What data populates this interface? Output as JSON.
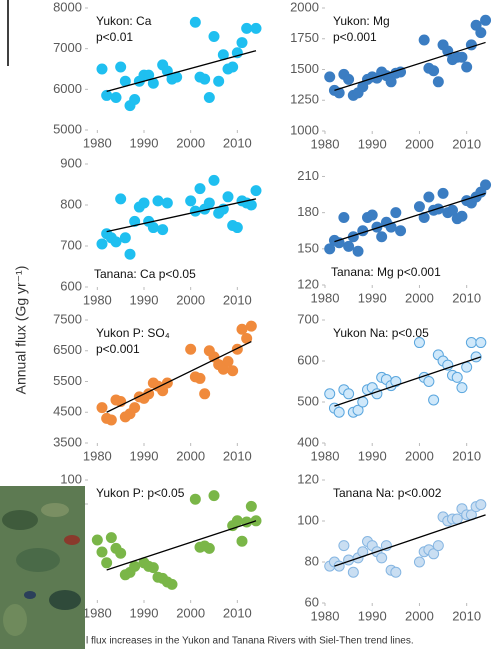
{
  "axis_label": "Annual flux (Gg yr⁻¹)",
  "caption": "l flux increases in the Yukon and Tanana Rivers with Siel-Then trend lines.",
  "chart_data": [
    {
      "type": "scatter",
      "title": "Yukon: Ca",
      "subtitle": "p<0.01",
      "label_position": "top",
      "color": "#1fbff0",
      "edge_color": "#1fbff0",
      "xlim": [
        1978,
        2017
      ],
      "xticks": [
        1980,
        1990,
        2000,
        2010
      ],
      "ylim": [
        5000,
        8000
      ],
      "yticks": [
        5000,
        6000,
        7000,
        8000
      ],
      "x": [
        1981,
        1982,
        1984,
        1985,
        1986,
        1987,
        1988,
        1989,
        1990,
        1991,
        1992,
        1994,
        1995,
        1996,
        1997,
        2001,
        2002,
        2003,
        2004,
        2005,
        2006,
        2007,
        2008,
        2009,
        2010,
        2011,
        2012,
        2014
      ],
      "y": [
        6500,
        5850,
        5800,
        6550,
        6200,
        5600,
        5750,
        6200,
        6350,
        6350,
        6150,
        6600,
        6450,
        6250,
        6300,
        7650,
        6300,
        6250,
        5800,
        7300,
        6200,
        6850,
        6500,
        6550,
        6900,
        7150,
        7500,
        7500
      ],
      "trend": {
        "x": [
          1982,
          2014
        ],
        "y": [
          5950,
          6950
        ]
      }
    },
    {
      "type": "scatter",
      "title": "Yukon: Mg",
      "subtitle": "p<0.001",
      "label_position": "top",
      "color": "#3b7dc2",
      "edge_color": "#3b7dc2",
      "xlim": [
        1980,
        2016
      ],
      "xticks": [
        1980,
        1990,
        2000,
        2010
      ],
      "ylim": [
        1000,
        2000
      ],
      "yticks": [
        1000,
        1250,
        1500,
        1750,
        2000
      ],
      "x": [
        1981,
        1982,
        1983,
        1984,
        1985,
        1986,
        1987,
        1988,
        1989,
        1990,
        1991,
        1992,
        1993,
        1994,
        1995,
        1996,
        2001,
        2002,
        2003,
        2004,
        2005,
        2006,
        2007,
        2008,
        2009,
        2010,
        2011,
        2012,
        2013,
        2014
      ],
      "y": [
        1440,
        1330,
        1310,
        1460,
        1420,
        1290,
        1310,
        1360,
        1420,
        1440,
        1430,
        1480,
        1450,
        1400,
        1470,
        1480,
        1740,
        1510,
        1490,
        1400,
        1700,
        1650,
        1580,
        1600,
        1600,
        1520,
        1700,
        1860,
        1800,
        1900
      ],
      "trend": {
        "x": [
          1982,
          2014
        ],
        "y": [
          1330,
          1720
        ]
      }
    },
    {
      "type": "scatter",
      "title": "Tanana: Ca p<0.05",
      "label_position": "bottom",
      "color": "#1fbff0",
      "edge_color": "#1fbff0",
      "xlim": [
        1978,
        2017
      ],
      "xticks": [
        1980,
        1990,
        2000,
        2010
      ],
      "ylim": [
        600,
        900
      ],
      "yticks": [
        600,
        700,
        800,
        900
      ],
      "x": [
        1981,
        1982,
        1983,
        1984,
        1985,
        1986,
        1987,
        1988,
        1989,
        1990,
        1991,
        1992,
        1993,
        1994,
        1995,
        2000,
        2001,
        2002,
        2003,
        2004,
        2005,
        2006,
        2007,
        2008,
        2009,
        2010,
        2011,
        2012,
        2013,
        2014
      ],
      "y": [
        705,
        730,
        720,
        710,
        815,
        720,
        680,
        760,
        795,
        805,
        760,
        745,
        810,
        740,
        805,
        810,
        785,
        840,
        790,
        805,
        860,
        780,
        790,
        820,
        750,
        745,
        810,
        805,
        800,
        835
      ],
      "trend": {
        "x": [
          1982,
          2014
        ],
        "y": [
          735,
          815
        ]
      }
    },
    {
      "type": "scatter",
      "title": "Tanana: Mg p<0.001",
      "label_position": "bottom",
      "color": "#3b7dc2",
      "edge_color": "#3b7dc2",
      "xlim": [
        1980,
        2016
      ],
      "xticks": [
        1980,
        1990,
        2000,
        2010
      ],
      "ylim": [
        120,
        222
      ],
      "yticks": [
        120,
        150,
        180,
        210
      ],
      "x": [
        1981,
        1982,
        1983,
        1984,
        1985,
        1986,
        1987,
        1988,
        1989,
        1990,
        1991,
        1992,
        1993,
        1994,
        1995,
        1996,
        2000,
        2001,
        2002,
        2003,
        2004,
        2005,
        2006,
        2007,
        2008,
        2009,
        2010,
        2011,
        2012,
        2013,
        2014
      ],
      "y": [
        150,
        157,
        155,
        176,
        152,
        160,
        148,
        165,
        176,
        178,
        168,
        160,
        172,
        168,
        180,
        165,
        185,
        176,
        193,
        182,
        183,
        196,
        180,
        182,
        175,
        177,
        190,
        188,
        193,
        197,
        203
      ],
      "trend": {
        "x": [
          1982,
          2014
        ],
        "y": [
          156,
          196
        ]
      }
    },
    {
      "type": "scatter",
      "title": "Yukon P: SO₄",
      "subtitle": "p<0.001",
      "label_position": "top",
      "color": "#f08a3c",
      "edge_color": "#f08a3c",
      "xlim": [
        1978,
        2017
      ],
      "xticks": [
        1980,
        1990,
        2000,
        2010
      ],
      "ylim": [
        3500,
        7500
      ],
      "yticks": [
        3500,
        4500,
        5500,
        6500,
        7500
      ],
      "x": [
        1981,
        1982,
        1983,
        1984,
        1985,
        1986,
        1987,
        1988,
        1989,
        1990,
        1991,
        1992,
        1993,
        1994,
        1995,
        2000,
        2001,
        2002,
        2003,
        2004,
        2005,
        2006,
        2007,
        2008,
        2009,
        2010,
        2011,
        2012,
        2013
      ],
      "y": [
        4650,
        4300,
        4250,
        4900,
        4850,
        4350,
        4450,
        4650,
        5000,
        4950,
        5100,
        5450,
        5350,
        5200,
        5450,
        6550,
        5650,
        5600,
        5100,
        6500,
        6300,
        6050,
        5900,
        6150,
        5850,
        6550,
        7200,
        6900,
        7300
      ],
      "trend": {
        "x": [
          1982,
          2013
        ],
        "y": [
          4500,
          6800
        ]
      }
    },
    {
      "type": "scatter",
      "title": "Yukon Na: p<0.05",
      "label_position": "top",
      "color": "#cfe8fa",
      "edge_color": "#5aa6de",
      "xlim": [
        1980,
        2016
      ],
      "xticks": [
        1980,
        1990,
        2000,
        2010
      ],
      "ylim": [
        400,
        700
      ],
      "yticks": [
        400,
        500,
        600,
        700
      ],
      "x": [
        1981,
        1982,
        1983,
        1984,
        1985,
        1986,
        1987,
        1988,
        1989,
        1990,
        1991,
        1992,
        1993,
        1994,
        1995,
        2000,
        2001,
        2002,
        2003,
        2004,
        2005,
        2006,
        2007,
        2008,
        2009,
        2010,
        2011,
        2012,
        2013
      ],
      "y": [
        520,
        485,
        475,
        530,
        520,
        475,
        480,
        500,
        530,
        535,
        520,
        560,
        555,
        540,
        550,
        645,
        560,
        550,
        505,
        615,
        600,
        590,
        565,
        560,
        535,
        585,
        645,
        610,
        645
      ],
      "trend": {
        "x": [
          1982,
          2013
        ],
        "y": [
          490,
          610
        ]
      }
    },
    {
      "type": "scatter",
      "title": "Yukon P: p<0.05",
      "label_position": "top",
      "color": "#7ab648",
      "edge_color": "#7ab648",
      "xlim": [
        1978,
        2017
      ],
      "xticks": [
        1980,
        1990,
        2000,
        2010
      ],
      "ylim": [
        0,
        100
      ],
      "yticks": [
        80,
        100
      ],
      "x": [
        1980,
        1981,
        1982,
        1983,
        1984,
        1985,
        1986,
        1987,
        1988,
        1990,
        1991,
        1992,
        1993,
        1994,
        1995,
        1996,
        2001,
        2002,
        2003,
        2004,
        2005,
        2009,
        2010,
        2011,
        2012,
        2013,
        2014
      ],
      "y": [
        50,
        40,
        31,
        52,
        43,
        39,
        21,
        23,
        28,
        31,
        28,
        27,
        19,
        18,
        15,
        13,
        84,
        44,
        45,
        43,
        87,
        62,
        66,
        49,
        65,
        78,
        66
      ],
      "trend": {
        "x": [
          1982,
          2014
        ],
        "y": [
          25,
          66
        ]
      }
    },
    {
      "type": "scatter",
      "title": "Tanana Na: p<0.002",
      "label_position": "top",
      "color": "#c9def2",
      "edge_color": "#86b6e2",
      "xlim": [
        1980,
        2016
      ],
      "xticks": [
        1980,
        1990,
        2000,
        2010
      ],
      "ylim": [
        60,
        120
      ],
      "yticks": [
        60,
        80,
        100,
        120
      ],
      "x": [
        1981,
        1982,
        1983,
        1984,
        1985,
        1986,
        1987,
        1988,
        1989,
        1990,
        1991,
        1992,
        1993,
        1994,
        1995,
        2000,
        2001,
        2002,
        2003,
        2004,
        2005,
        2006,
        2007,
        2008,
        2009,
        2010,
        2011,
        2012,
        2013
      ],
      "y": [
        78,
        80,
        78,
        88,
        81,
        75,
        82,
        85,
        90,
        88,
        85,
        82,
        88,
        76,
        75,
        80,
        85,
        86,
        84,
        88,
        102,
        100,
        101,
        101,
        106,
        103,
        103,
        107,
        108
      ],
      "trend": {
        "x": [
          1982,
          2014
        ],
        "y": [
          78,
          103
        ]
      }
    }
  ]
}
